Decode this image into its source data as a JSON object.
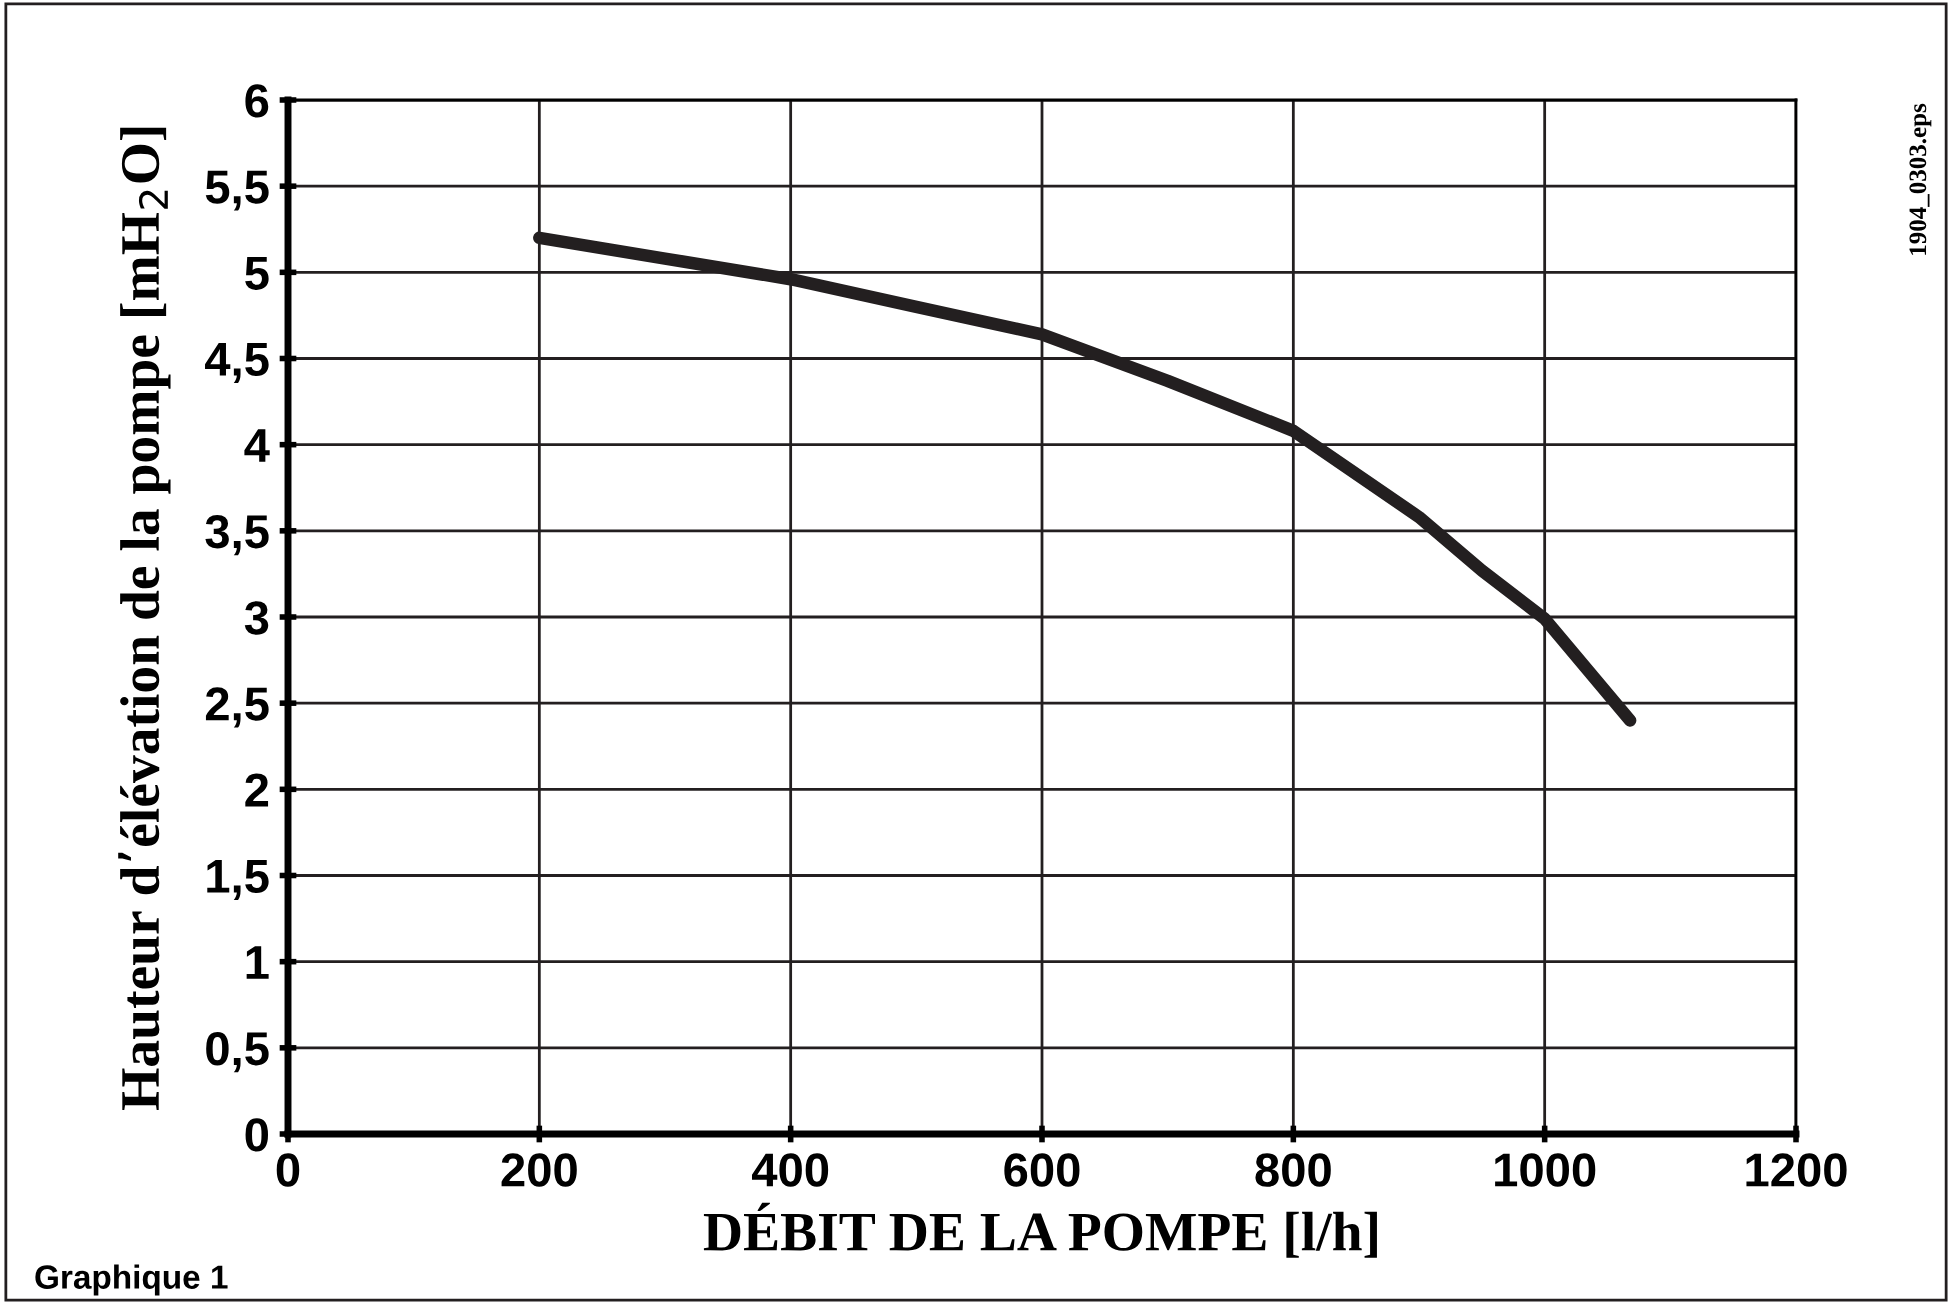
{
  "chart_data": {
    "type": "line",
    "xlabel": "DÉBIT DE LA POMPE [l/h]",
    "ylabel": "Hauteur d’élévation de la pompe [mH$_{2}$O]",
    "x": [
      200,
      300,
      400,
      500,
      600,
      700,
      800,
      900,
      950,
      1000,
      1068
    ],
    "series": [
      {
        "color": "#231f20",
        "values": [
          5.2,
          5.08,
          4.96,
          4.8,
          4.64,
          4.37,
          4.08,
          3.58,
          3.27,
          2.99,
          2.4
        ]
      }
    ],
    "xlim": [
      0,
      1200
    ],
    "xticks": [
      0,
      200,
      400,
      600,
      800,
      1000,
      1200
    ],
    "ylim": [
      0,
      6
    ],
    "yticks": [
      0,
      {
        "value": 0.5,
        "label": "0,5"
      },
      1,
      {
        "value": 1.5,
        "label": "1,5"
      },
      2,
      {
        "value": 2.5,
        "label": "2,5"
      },
      3,
      {
        "value": 3.5,
        "label": "3,5"
      },
      4,
      {
        "value": 4.5,
        "label": "4,5"
      },
      5,
      {
        "value": 5.5,
        "label": "5,5"
      },
      6
    ],
    "grid": true,
    "marker": "none",
    "line_style": "solid",
    "annotations": [
      "Graphique 1",
      "1904_0303.eps"
    ]
  }
}
